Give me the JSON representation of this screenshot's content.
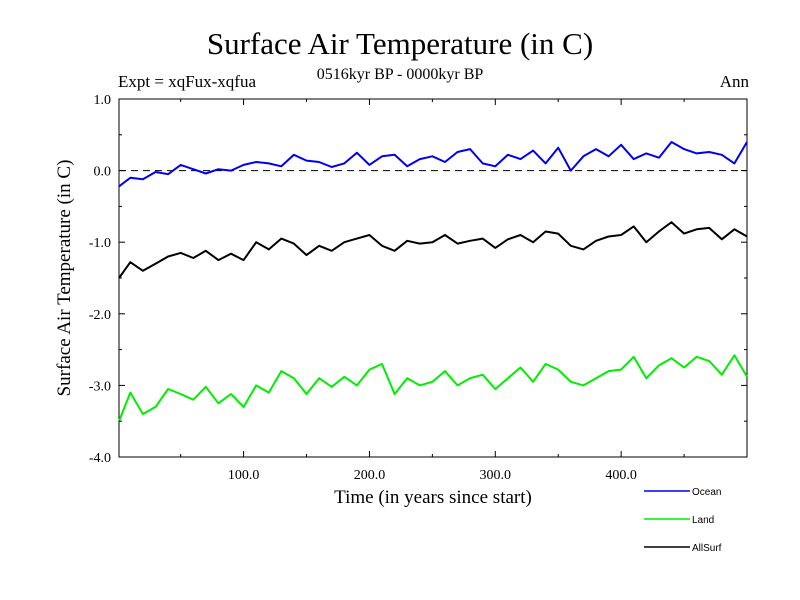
{
  "chart_data": {
    "type": "line",
    "title": "Surface Air Temperature (in C)",
    "subtitle": "0516kyr BP - 0000kyr BP",
    "experiment_label": "Expt = xqFux-xqfua",
    "season_label": "Ann",
    "xlabel": "Time (in years since start)",
    "ylabel": "Surface Air Temperature (in C)",
    "xlim": [
      1,
      500
    ],
    "ylim": [
      -4.0,
      1.0
    ],
    "xticks": [
      100,
      200,
      300,
      400
    ],
    "xtick_labels": [
      "100.0",
      "200.0",
      "300.0",
      "400.0"
    ],
    "yticks": [
      1.0,
      0.0,
      -1.0,
      -2.0,
      -3.0,
      -4.0
    ],
    "ytick_labels": [
      "1.0",
      "0.0",
      "-1.0",
      "-2.0",
      "-3.0",
      "-4.0"
    ],
    "reference_line": 0.0,
    "series": [
      {
        "name": "Ocean",
        "color": "#0000ee",
        "x": [
          1,
          10,
          20,
          30,
          40,
          50,
          60,
          70,
          80,
          90,
          100,
          110,
          120,
          130,
          140,
          150,
          160,
          170,
          180,
          190,
          200,
          210,
          220,
          230,
          240,
          250,
          260,
          270,
          280,
          290,
          300,
          310,
          320,
          330,
          340,
          350,
          360,
          370,
          380,
          390,
          400,
          410,
          420,
          430,
          440,
          450,
          460,
          470,
          480,
          490,
          500
        ],
        "values": [
          -0.22,
          -0.1,
          -0.12,
          -0.02,
          -0.05,
          0.08,
          0.02,
          -0.04,
          0.02,
          0.0,
          0.08,
          0.12,
          0.1,
          0.06,
          0.22,
          0.14,
          0.12,
          0.05,
          0.1,
          0.25,
          0.08,
          0.2,
          0.22,
          0.06,
          0.16,
          0.2,
          0.12,
          0.26,
          0.3,
          0.1,
          0.06,
          0.22,
          0.16,
          0.28,
          0.1,
          0.32,
          0.0,
          0.2,
          0.3,
          0.2,
          0.36,
          0.16,
          0.24,
          0.18,
          0.4,
          0.3,
          0.24,
          0.26,
          0.22,
          0.1,
          0.4
        ]
      },
      {
        "name": "Land",
        "color": "#00ee00",
        "x": [
          1,
          10,
          20,
          30,
          40,
          50,
          60,
          70,
          80,
          90,
          100,
          110,
          120,
          130,
          140,
          150,
          160,
          170,
          180,
          190,
          200,
          210,
          220,
          230,
          240,
          250,
          260,
          270,
          280,
          290,
          300,
          310,
          320,
          330,
          340,
          350,
          360,
          370,
          380,
          390,
          400,
          410,
          420,
          430,
          440,
          450,
          460,
          470,
          480,
          490,
          500
        ],
        "values": [
          -3.5,
          -3.1,
          -3.4,
          -3.3,
          -3.05,
          -3.12,
          -3.2,
          -3.02,
          -3.25,
          -3.12,
          -3.3,
          -3.0,
          -3.1,
          -2.8,
          -2.9,
          -3.12,
          -2.9,
          -3.02,
          -2.88,
          -3.0,
          -2.78,
          -2.7,
          -3.12,
          -2.9,
          -3.0,
          -2.95,
          -2.8,
          -3.0,
          -2.9,
          -2.85,
          -3.05,
          -2.9,
          -2.75,
          -2.95,
          -2.7,
          -2.78,
          -2.95,
          -3.0,
          -2.9,
          -2.8,
          -2.78,
          -2.6,
          -2.9,
          -2.72,
          -2.62,
          -2.75,
          -2.6,
          -2.66,
          -2.85,
          -2.58,
          -2.88
        ]
      },
      {
        "name": "AllSurf",
        "color": "#000000",
        "x": [
          1,
          10,
          20,
          30,
          40,
          50,
          60,
          70,
          80,
          90,
          100,
          110,
          120,
          130,
          140,
          150,
          160,
          170,
          180,
          190,
          200,
          210,
          220,
          230,
          240,
          250,
          260,
          270,
          280,
          290,
          300,
          310,
          320,
          330,
          340,
          350,
          360,
          370,
          380,
          390,
          400,
          410,
          420,
          430,
          440,
          450,
          460,
          470,
          480,
          490,
          500
        ],
        "values": [
          -1.5,
          -1.28,
          -1.4,
          -1.3,
          -1.2,
          -1.15,
          -1.22,
          -1.12,
          -1.25,
          -1.16,
          -1.25,
          -1.0,
          -1.1,
          -0.95,
          -1.02,
          -1.18,
          -1.05,
          -1.12,
          -1.0,
          -0.95,
          -0.9,
          -1.05,
          -1.12,
          -0.98,
          -1.02,
          -1.0,
          -0.9,
          -1.02,
          -0.98,
          -0.95,
          -1.08,
          -0.96,
          -0.9,
          -1.0,
          -0.85,
          -0.88,
          -1.05,
          -1.1,
          -0.98,
          -0.92,
          -0.9,
          -0.78,
          -1.0,
          -0.85,
          -0.72,
          -0.88,
          -0.82,
          -0.8,
          -0.96,
          -0.82,
          -0.92
        ]
      }
    ],
    "legend": [
      {
        "label": "Ocean",
        "color": "#0000ee"
      },
      {
        "label": "Land",
        "color": "#00ee00"
      },
      {
        "label": "AllSurf",
        "color": "#000000"
      }
    ]
  }
}
